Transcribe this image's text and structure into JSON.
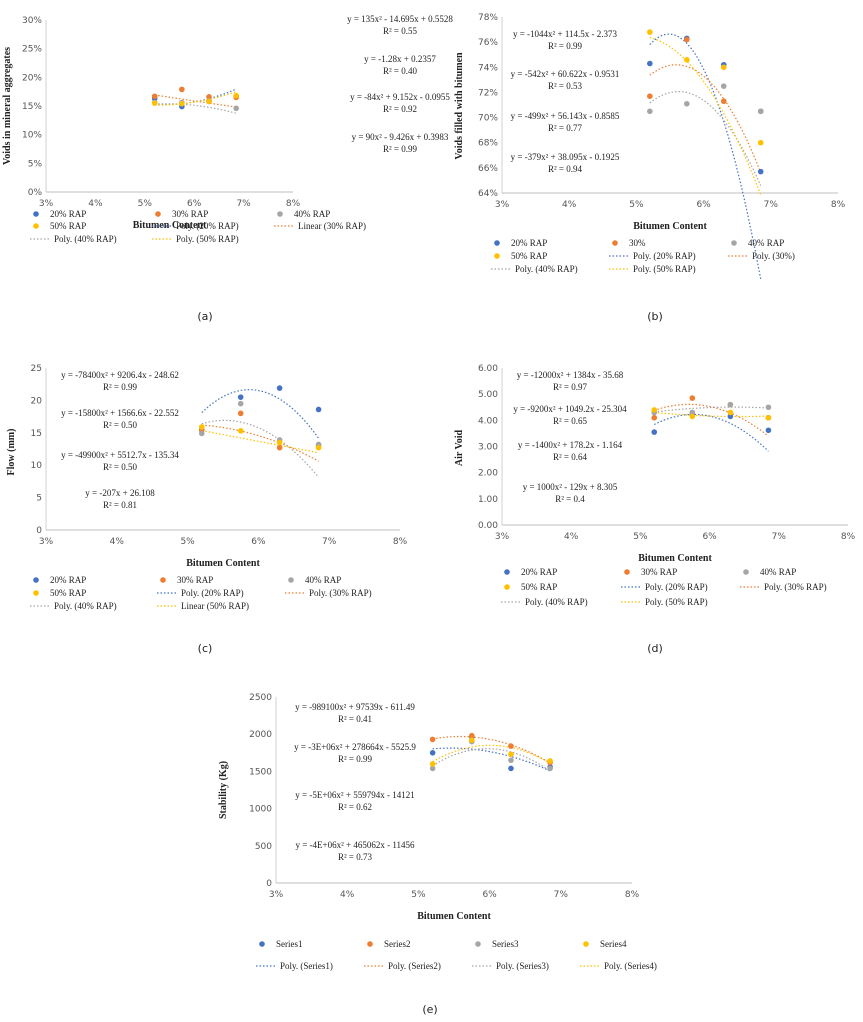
{
  "colors": {
    "blue": "#4472c4",
    "orange": "#ed7d31",
    "gray": "#a5a5a5",
    "yellow": "#ffc000"
  },
  "chart_data": [
    {
      "id": "a",
      "panel_label": "(a)",
      "type": "scatter",
      "xlabel": "Bitumen Content",
      "ylabel": "Voids in mineral aggregates",
      "x_ticks": [
        "3%",
        "4%",
        "5%",
        "6%",
        "7%",
        "8%"
      ],
      "y_ticks": [
        "0%",
        "5%",
        "10%",
        "15%",
        "20%",
        "25%",
        "30%"
      ],
      "xlim": [
        0.03,
        0.08
      ],
      "ylim": [
        0,
        0.3
      ],
      "series": [
        {
          "name": "20% RAP",
          "color": "blue",
          "x": [
            0.052,
            0.0575,
            0.063,
            0.0685
          ],
          "y": [
            0.163,
            0.149,
            0.158,
            0.167
          ]
        },
        {
          "name": "30% RAP",
          "color": "orange",
          "x": [
            0.052,
            0.0575,
            0.063,
            0.0685
          ],
          "y": [
            0.167,
            0.179,
            0.166,
            0.165
          ]
        },
        {
          "name": "40% RAP",
          "color": "gray",
          "x": [
            0.052,
            0.0575,
            0.063,
            0.0685
          ],
          "y": [
            0.156,
            0.156,
            0.159,
            0.146
          ]
        },
        {
          "name": "50% RAP",
          "color": "yellow",
          "x": [
            0.052,
            0.0575,
            0.063,
            0.0685
          ],
          "y": [
            0.155,
            0.154,
            0.158,
            0.168
          ]
        }
      ],
      "trendlines": [
        {
          "name": "Poly. (20% RAP)",
          "color": "blue",
          "kind": "poly",
          "coef": [
            135,
            -14.695,
            0.5528
          ]
        },
        {
          "name": "Linear (30% RAP)",
          "color": "orange",
          "kind": "linear",
          "coef": [
            0,
            -1.28,
            0.2357
          ]
        },
        {
          "name": "Poly. (40% RAP)",
          "color": "gray",
          "kind": "poly",
          "coef": [
            -84,
            9.152,
            -0.0955
          ]
        },
        {
          "name": "Poly. (50% RAP)",
          "color": "yellow",
          "kind": "poly",
          "coef": [
            90,
            -9.426,
            0.3983
          ]
        }
      ],
      "equations": [
        {
          "eq": "y = 135x² - 14.695x + 0.5528",
          "r2": "R² = 0.55"
        },
        {
          "eq": "y = -1.28x + 0.2357",
          "r2": "R² = 0.40"
        },
        {
          "eq": "y = -84x² + 9.152x - 0.0955",
          "r2": "R² = 0.92"
        },
        {
          "eq": "y = 90x² - 9.426x + 0.3983",
          "r2": "R² = 0.99"
        }
      ],
      "legend": [
        "20% RAP",
        "30% RAP",
        "40% RAP",
        "50% RAP",
        "Poly. (20% RAP)",
        "Linear (30% RAP)",
        "Poly. (40% RAP)",
        "Poly. (50% RAP)"
      ]
    },
    {
      "id": "b",
      "panel_label": "(b)",
      "type": "scatter",
      "xlabel": "Bitumen Content",
      "ylabel": "Voids filled with bitumen",
      "x_ticks": [
        "3%",
        "4%",
        "5%",
        "6%",
        "7%",
        "8%"
      ],
      "y_ticks": [
        "64%",
        "66%",
        "68%",
        "70%",
        "72%",
        "74%",
        "76%",
        "78%"
      ],
      "xlim": [
        0.03,
        0.08
      ],
      "ylim": [
        0.64,
        0.78
      ],
      "series": [
        {
          "name": "20% RAP",
          "color": "blue",
          "x": [
            0.052,
            0.0575,
            0.063,
            0.0685
          ],
          "y": [
            0.743,
            0.763,
            0.742,
            0.657
          ]
        },
        {
          "name": "30%",
          "color": "orange",
          "x": [
            0.052,
            0.0575,
            0.063,
            0.0685
          ],
          "y": [
            0.717,
            0.762,
            0.713,
            0.705
          ]
        },
        {
          "name": "40% RAP",
          "color": "gray",
          "x": [
            0.052,
            0.0575,
            0.063,
            0.0685
          ],
          "y": [
            0.705,
            0.711,
            0.725,
            0.705
          ]
        },
        {
          "name": "50% RAP",
          "color": "yellow",
          "x": [
            0.052,
            0.0575,
            0.063,
            0.0685
          ],
          "y": [
            0.768,
            0.746,
            0.74,
            0.68
          ]
        }
      ],
      "trendlines": [
        {
          "name": "Poly. (20% RAP)",
          "color": "blue",
          "kind": "poly",
          "coef": [
            -1044,
            114.5,
            -2.373
          ]
        },
        {
          "name": "Poly. (30%)",
          "color": "orange",
          "kind": "poly",
          "coef": [
            -542,
            60.622,
            -0.9531
          ]
        },
        {
          "name": "Poly. (40% RAP)",
          "color": "gray",
          "kind": "poly",
          "coef": [
            -499,
            56.143,
            -0.8585
          ]
        },
        {
          "name": "Poly. (50% RAP)",
          "color": "yellow",
          "kind": "poly",
          "coef": [
            -379,
            38.095,
            -0.1925
          ]
        }
      ],
      "equations": [
        {
          "eq": "y = -1044x² + 114.5x - 2.373",
          "r2": "R² = 0.99"
        },
        {
          "eq": "y = -542x² + 60.622x - 0.9531",
          "r2": "R² = 0.53"
        },
        {
          "eq": "y = -499x² + 56.143x - 0.8585",
          "r2": "R² = 0.77"
        },
        {
          "eq": "y = -379x² + 38.095x - 0.1925",
          "r2": "R² = 0.94"
        }
      ],
      "legend": [
        "20% RAP",
        "30%",
        "40% RAP",
        "50% RAP",
        "Poly. (20% RAP)",
        "Poly. (30%)",
        "Poly. (40% RAP)",
        "Poly. (50% RAP)"
      ]
    },
    {
      "id": "c",
      "panel_label": "(c)",
      "type": "scatter",
      "xlabel": "Bitumen Content",
      "ylabel": "Flow (mm)",
      "x_ticks": [
        "3%",
        "4%",
        "5%",
        "6%",
        "7%",
        "8%"
      ],
      "y_ticks": [
        "0",
        "5",
        "10",
        "15",
        "20",
        "25"
      ],
      "xlim": [
        0.03,
        0.08
      ],
      "ylim": [
        0,
        25
      ],
      "series": [
        {
          "name": "20% RAP",
          "color": "blue",
          "x": [
            0.052,
            0.0575,
            0.063,
            0.0685
          ],
          "y": [
            15.5,
            20.5,
            21.9,
            18.6
          ]
        },
        {
          "name": "30% RAP",
          "color": "orange",
          "x": [
            0.052,
            0.0575,
            0.063,
            0.0685
          ],
          "y": [
            15.4,
            18.0,
            12.7,
            13.0
          ]
        },
        {
          "name": "40% RAP",
          "color": "gray",
          "x": [
            0.052,
            0.0575,
            0.063,
            0.0685
          ],
          "y": [
            14.9,
            19.5,
            13.9,
            13.2
          ]
        },
        {
          "name": "50% RAP",
          "color": "yellow",
          "x": [
            0.052,
            0.0575,
            0.063,
            0.0685
          ],
          "y": [
            15.9,
            15.3,
            13.5,
            12.7
          ]
        }
      ],
      "trendlines": [
        {
          "name": "Poly. (20% RAP)",
          "color": "blue",
          "kind": "poly",
          "coef": [
            -78400,
            9206.4,
            -248.62
          ]
        },
        {
          "name": "Poly. (30% RAP)",
          "color": "orange",
          "kind": "poly",
          "coef": [
            -15800,
            1566.6,
            -22.552
          ]
        },
        {
          "name": "Poly. (40% RAP)",
          "color": "gray",
          "kind": "poly",
          "coef": [
            -49900,
            5512.7,
            -135.34
          ]
        },
        {
          "name": "Linear (50% RAP)",
          "color": "yellow",
          "kind": "linear",
          "coef": [
            0,
            -207,
            26.108
          ]
        }
      ],
      "equations": [
        {
          "eq": "y = -78400x² + 9206.4x - 248.62",
          "r2": "R² = 0.99"
        },
        {
          "eq": "y = -15800x² + 1566.6x - 22.552",
          "r2": "R² = 0.50"
        },
        {
          "eq": "y = -49900x² + 5512.7x - 135.34",
          "r2": "R² = 0.50"
        },
        {
          "eq": "y = -207x + 26.108",
          "r2": "R² = 0.81"
        }
      ],
      "legend": [
        "20% RAP",
        "30% RAP",
        "40% RAP",
        "50% RAP",
        "Poly. (20% RAP)",
        "Poly. (30% RAP)",
        "Poly. (40% RAP)",
        "Linear (50% RAP)"
      ]
    },
    {
      "id": "d",
      "panel_label": "(d)",
      "type": "scatter",
      "xlabel": "Bitumen Content",
      "ylabel": "Air Void",
      "x_ticks": [
        "3%",
        "4%",
        "5%",
        "6%",
        "7%",
        "8%"
      ],
      "y_ticks": [
        "0.00",
        "1.00",
        "2.00",
        "3.00",
        "4.00",
        "5.00",
        "6.00"
      ],
      "xlim": [
        0.03,
        0.08
      ],
      "ylim": [
        0,
        6
      ],
      "series": [
        {
          "name": "20% RAP",
          "color": "blue",
          "x": [
            0.052,
            0.0575,
            0.063,
            0.0685
          ],
          "y": [
            3.55,
            4.2,
            4.15,
            3.62
          ]
        },
        {
          "name": "30% RAP",
          "color": "orange",
          "x": [
            0.052,
            0.0575,
            0.063,
            0.0685
          ],
          "y": [
            4.1,
            4.85,
            4.6,
            4.1
          ]
        },
        {
          "name": "40% RAP",
          "color": "gray",
          "x": [
            0.052,
            0.0575,
            0.063,
            0.0685
          ],
          "y": [
            4.3,
            4.3,
            4.6,
            4.5
          ]
        },
        {
          "name": "50% RAP",
          "color": "yellow",
          "x": [
            0.052,
            0.0575,
            0.063,
            0.0685
          ],
          "y": [
            4.4,
            4.15,
            4.3,
            4.1
          ]
        }
      ],
      "trendlines": [
        {
          "name": "Poly. (20% RAP)",
          "color": "blue",
          "kind": "poly",
          "coef": [
            -12000,
            1384,
            -35.68
          ]
        },
        {
          "name": "Poly. (30% RAP)",
          "color": "orange",
          "kind": "poly",
          "coef": [
            -9200,
            1049.2,
            -25.304
          ]
        },
        {
          "name": "Poly. (40% RAP)",
          "color": "gray",
          "kind": "poly",
          "coef": [
            -1400,
            178.2,
            -1.164
          ]
        },
        {
          "name": "Poly. (50% RAP)",
          "color": "yellow",
          "kind": "poly",
          "coef": [
            1000,
            -129,
            8.305
          ]
        }
      ],
      "equations": [
        {
          "eq": "y = -12000x² + 1384x - 35.68",
          "r2": "R² = 0.97"
        },
        {
          "eq": "y = -9200x² + 1049.2x - 25.304",
          "r2": "R² = 0.65"
        },
        {
          "eq": "y = -1400x² + 178.2x - 1.164",
          "r2": "R² = 0.64"
        },
        {
          "eq": "y = 1000x² - 129x + 8.305",
          "r2": "R² = 0.4"
        }
      ],
      "legend": [
        "20% RAP",
        "30% RAP",
        "40% RAP",
        "50% RAP",
        "Poly. (20% RAP)",
        "Poly. (30% RAP)",
        "Poly. (40% RAP)",
        "Poly. (50% RAP)"
      ]
    },
    {
      "id": "e",
      "panel_label": "(e)",
      "type": "scatter",
      "xlabel": "Bitumen Content",
      "ylabel": "Stability (Kg)",
      "x_ticks": [
        "3%",
        "4%",
        "5%",
        "6%",
        "7%",
        "8%"
      ],
      "y_ticks": [
        "0",
        "500",
        "1000",
        "1500",
        "2000",
        "2500"
      ],
      "xlim": [
        0.03,
        0.08
      ],
      "ylim": [
        0,
        2500
      ],
      "series": [
        {
          "name": "Series1",
          "color": "blue",
          "x": [
            0.052,
            0.0575,
            0.063,
            0.0685
          ],
          "y": [
            1750,
            1960,
            1540,
            1560
          ]
        },
        {
          "name": "Series2",
          "color": "orange",
          "x": [
            0.052,
            0.0575,
            0.063,
            0.0685
          ],
          "y": [
            1930,
            1980,
            1840,
            1620
          ]
        },
        {
          "name": "Series3",
          "color": "gray",
          "x": [
            0.052,
            0.0575,
            0.063,
            0.0685
          ],
          "y": [
            1540,
            1900,
            1650,
            1540
          ]
        },
        {
          "name": "Series4",
          "color": "yellow",
          "x": [
            0.052,
            0.0575,
            0.063,
            0.0685
          ],
          "y": [
            1600,
            1920,
            1730,
            1640
          ]
        }
      ],
      "trendlines": [
        {
          "name": "Poly. (Series1)",
          "color": "blue",
          "kind": "fit"
        },
        {
          "name": "Poly. (Series2)",
          "color": "orange",
          "kind": "fit"
        },
        {
          "name": "Poly. (Series3)",
          "color": "gray",
          "kind": "fit"
        },
        {
          "name": "Poly. (Series4)",
          "color": "yellow",
          "kind": "fit"
        }
      ],
      "equations": [
        {
          "eq": "y = -989100x² + 97539x - 611.49",
          "r2": "R² = 0.41"
        },
        {
          "eq": "y = -3E+06x² + 278664x - 5525.9",
          "r2": "R² = 0.99"
        },
        {
          "eq": "y = -5E+06x² + 559794x - 14121",
          "r2": "R² = 0.62"
        },
        {
          "eq": "y = -4E+06x² + 465062x - 11456",
          "r2": "R² = 0.73"
        }
      ],
      "legend": [
        "Series1",
        "Series2",
        "Series3",
        "Series4",
        "Poly. (Series1)",
        "Poly. (Series2)",
        "Poly. (Series3)",
        "Poly. (Series4)"
      ]
    }
  ]
}
